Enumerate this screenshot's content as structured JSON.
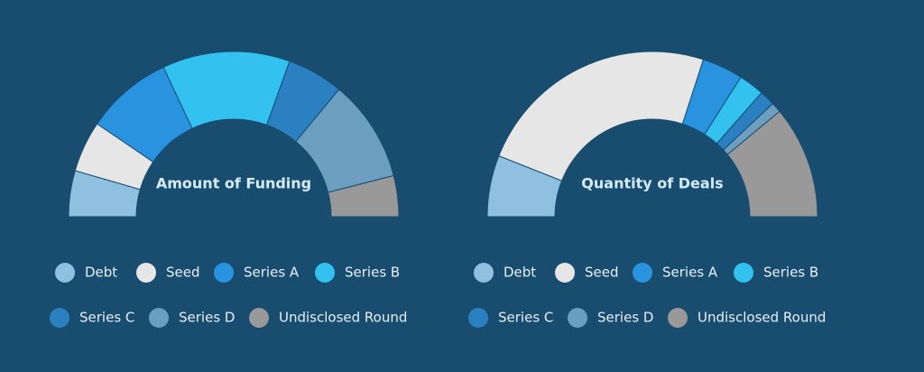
{
  "chart_data": [
    {
      "type": "donut",
      "title": "Amount of Funding",
      "categories": [
        "Debt",
        "Seed",
        "Series A",
        "Series B",
        "Series C",
        "Series D",
        "Undisclosed Round"
      ],
      "values": [
        9,
        10,
        17,
        25,
        11,
        20,
        8
      ],
      "colors": [
        "#8fc0e0",
        "#e6e6e6",
        "#2a93e0",
        "#33c2f0",
        "#2a80c0",
        "#6c9ec0",
        "#999999"
      ]
    },
    {
      "type": "donut",
      "title": "Quantity of Deals",
      "categories": [
        "Debt",
        "Seed",
        "Series A",
        "Series B",
        "Series C",
        "Series D",
        "Undisclosed Round"
      ],
      "values": [
        12,
        48,
        8,
        5,
        3,
        2,
        22
      ],
      "colors": [
        "#8fc0e0",
        "#e6e6e6",
        "#2a93e0",
        "#33c2f0",
        "#2a80c0",
        "#6c9ec0",
        "#999999"
      ]
    }
  ]
}
